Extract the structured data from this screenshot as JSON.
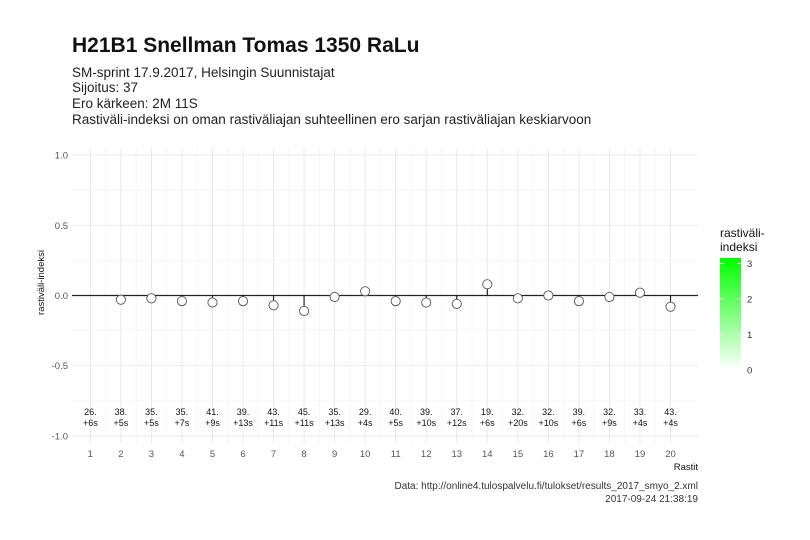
{
  "title": "H21B1 Snellman Tomas 1350 RaLu",
  "subtitle_lines": [
    "SM-sprint 17.9.2017, Helsingin Suunnistajat",
    "Sijoitus: 37",
    "Ero kärkeen: 2M 11S",
    "Rastiväli-indeksi on oman rastiväliajan suhteellinen ero sarjan rastiväliajan keskiarvoon"
  ],
  "caption_lines": [
    "Data: http://online4.tulospalvelu.fi/tulokset/results_2017_smyo_2.xml",
    "2017-09-24 21:38:19"
  ],
  "chart_data": {
    "type": "scatter",
    "title": "H21B1 Snellman Tomas 1350 RaLu",
    "xlabel": "Rastit",
    "ylabel": "rastiväli-indeksi",
    "x": [
      1,
      2,
      3,
      4,
      5,
      6,
      7,
      8,
      9,
      10,
      11,
      12,
      13,
      14,
      15,
      16,
      17,
      18,
      19,
      20
    ],
    "y": [
      null,
      -0.03,
      -0.02,
      -0.04,
      -0.05,
      -0.04,
      -0.07,
      -0.11,
      -0.01,
      0.03,
      -0.04,
      -0.05,
      -0.06,
      0.08,
      -0.02,
      0.0,
      -0.04,
      -0.01,
      0.02,
      -0.08
    ],
    "rank_labels": [
      "26.",
      "38.",
      "35.",
      "35.",
      "41.",
      "39.",
      "43.",
      "45.",
      "35.",
      "29.",
      "40.",
      "39.",
      "37.",
      "19.",
      "32.",
      "32.",
      "39.",
      "32.",
      "33.",
      "43."
    ],
    "diff_labels": [
      "+6s",
      "+5s",
      "+5s",
      "+7s",
      "+9s",
      "+13s",
      "+11s",
      "+11s",
      "+13s",
      "+4s",
      "+5s",
      "+10s",
      "+12s",
      "+6s",
      "+20s",
      "+10s",
      "+6s",
      "+9s",
      "+4s",
      "+4s"
    ],
    "x_ticks": [
      "1",
      "2",
      "3",
      "4",
      "5",
      "6",
      "7",
      "8",
      "9",
      "10",
      "11",
      "12",
      "13",
      "14",
      "15",
      "16",
      "17",
      "18",
      "19",
      "20"
    ],
    "y_ticks": [
      "1.0",
      "0.5",
      "0.0",
      "-0.5",
      "-1.0"
    ],
    "y_tick_values": [
      1.0,
      0.5,
      0.0,
      -0.5,
      -1.0
    ],
    "ylim": [
      -1.05,
      1.05
    ],
    "xlim": [
      0.4,
      20.9
    ],
    "grid": true,
    "legend": {
      "title_lines": [
        "rastiväli-",
        "indeksi"
      ],
      "ticks": [
        "3",
        "2",
        "1",
        "0"
      ],
      "tick_values": [
        3,
        2,
        1,
        0
      ],
      "range": [
        0,
        3.15
      ],
      "color_low": "#ffffff",
      "color_high": "#00ff00",
      "placement": "right"
    },
    "colors": {
      "point_fill": "#ffffff",
      "point_stroke": "#555555",
      "zero_line": "#222222",
      "grid": "#e3e3e3"
    }
  }
}
